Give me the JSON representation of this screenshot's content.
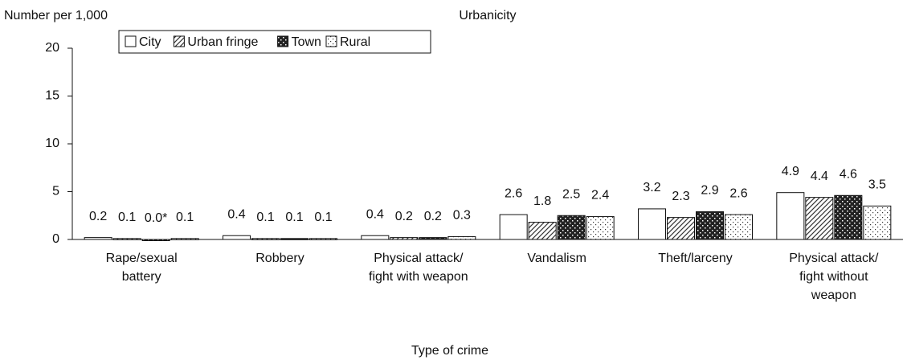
{
  "chart_data": {
    "type": "bar",
    "title": "Urbanicity",
    "y_label": "Number per 1,000",
    "x_label": "Type of crime",
    "categories": [
      "Rape/sexual\nbattery",
      "Robbery",
      "Physical attack/\nfight with weapon",
      "Vandalism",
      "Theft/larceny",
      "Physical attack/\nfight without\nweapon"
    ],
    "series": [
      {
        "name": "City",
        "color": "#ffffff",
        "pattern": "solid",
        "values": [
          0.2,
          0.4,
          0.4,
          2.6,
          3.2,
          4.9
        ],
        "value_labels": [
          "0.2",
          "0.4",
          "0.4",
          "2.6",
          "3.2",
          "4.9"
        ]
      },
      {
        "name": "Urban fringe",
        "color": "#ffffff",
        "pattern": "hatch",
        "values": [
          0.1,
          0.1,
          0.2,
          1.8,
          2.3,
          4.4
        ],
        "value_labels": [
          "0.1",
          "0.1",
          "0.2",
          "1.8",
          "2.3",
          "4.4"
        ]
      },
      {
        "name": "Town",
        "color": "#222222",
        "pattern": "dense",
        "values": [
          0,
          0.1,
          0.2,
          2.5,
          2.9,
          4.6
        ],
        "value_labels": [
          "0.0*",
          "0.1",
          "0.2",
          "2.5",
          "2.9",
          "4.6"
        ]
      },
      {
        "name": "Rural",
        "color": "#ffffff",
        "pattern": "dots",
        "values": [
          0.1,
          0.1,
          0.3,
          2.4,
          2.6,
          3.5
        ],
        "value_labels": [
          "0.1",
          "0.1",
          "0.3",
          "2.4",
          "2.6",
          "3.5"
        ]
      }
    ],
    "ylim": [
      0,
      20
    ],
    "yticks": [
      0,
      5,
      10,
      15,
      20
    ],
    "legend": "top-left",
    "grid": false
  }
}
